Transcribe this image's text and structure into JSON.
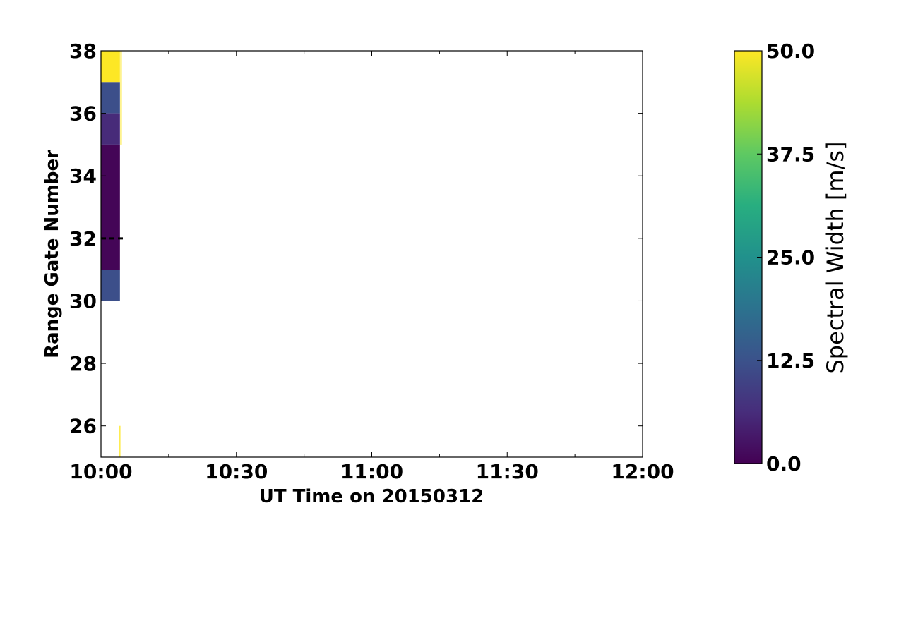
{
  "chart_data": {
    "type": "heatmap",
    "xlabel": "UT Time on 20150312",
    "ylabel": "Range Gate Number",
    "x_ticks": [
      "10:00",
      "10:30",
      "11:00",
      "11:30",
      "12:00"
    ],
    "x_tick_minutes": [
      0,
      30,
      60,
      90,
      120
    ],
    "xlim_minutes": [
      0,
      120
    ],
    "y_ticks": [
      "26",
      "28",
      "30",
      "32",
      "34",
      "36",
      "38"
    ],
    "y_tick_values": [
      26,
      28,
      30,
      32,
      34,
      36,
      38
    ],
    "ylim": [
      25,
      38
    ],
    "colorbar": {
      "label": "Spectral Width [m/s]",
      "ticks": [
        "0.0",
        "12.5",
        "25.0",
        "37.5",
        "50.0"
      ],
      "tick_values": [
        0,
        12.5,
        25,
        37.5,
        50
      ],
      "range": [
        0,
        50
      ],
      "colormap": "viridis"
    },
    "cells": [
      {
        "t0": 0,
        "t1": 4.2,
        "gate0": 37,
        "gate1": 38,
        "value": 50
      },
      {
        "t0": 0,
        "t1": 4.2,
        "gate0": 36,
        "gate1": 37,
        "value": 12
      },
      {
        "t0": 0,
        "t1": 4.2,
        "gate0": 35,
        "gate1": 36,
        "value": 6
      },
      {
        "t0": 0,
        "t1": 4.2,
        "gate0": 31,
        "gate1": 35,
        "value": 0.5
      },
      {
        "t0": 0,
        "t1": 4.2,
        "gate0": 30,
        "gate1": 31,
        "value": 12
      },
      {
        "t0": 4.3,
        "t1": 4.6,
        "gate0": 35,
        "gate1": 38,
        "value": 50
      },
      {
        "t0": 4.1,
        "t1": 4.3,
        "gate0": 25,
        "gate1": 26,
        "value": 50
      }
    ],
    "dashed_line": {
      "gate": 32,
      "t0": 0,
      "t1": 5
    },
    "grid": false
  }
}
